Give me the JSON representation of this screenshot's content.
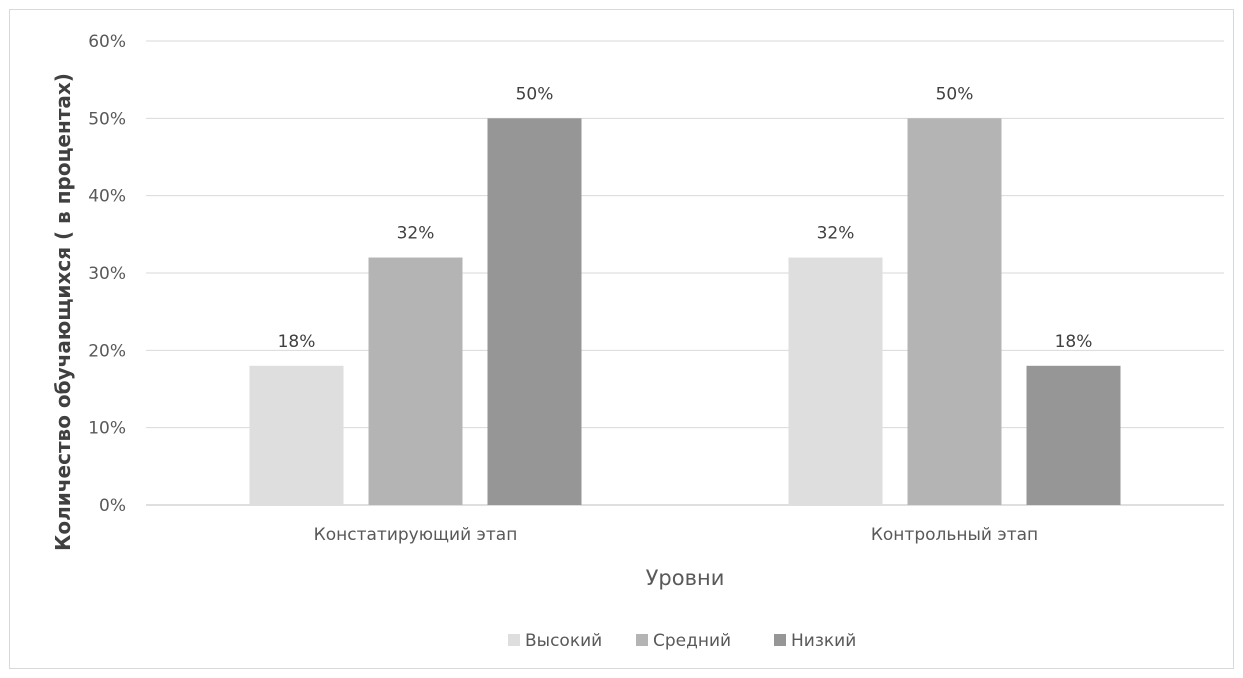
{
  "chart_data": {
    "type": "bar",
    "title": "",
    "xlabel": "Уровни",
    "ylabel": "Количество обучающихся ( в процентах)",
    "ylim": [
      0,
      60
    ],
    "yticks": [
      "0%",
      "10%",
      "20%",
      "30%",
      "40%",
      "50%",
      "60%"
    ],
    "grid": true,
    "legend_position": "bottom",
    "categories": [
      "Констатирующий этап",
      "Контрольный этап"
    ],
    "series": [
      {
        "name": "Высокий",
        "values": [
          18,
          32
        ],
        "labels": [
          "18%",
          "32%"
        ],
        "color": "#dedede"
      },
      {
        "name": "Средний",
        "values": [
          32,
          50
        ],
        "labels": [
          "32%",
          "50%"
        ],
        "color": "#b4b4b4"
      },
      {
        "name": "Низкий",
        "values": [
          50,
          18
        ],
        "labels": [
          "50%",
          "18%"
        ],
        "color": "#969696"
      }
    ]
  }
}
